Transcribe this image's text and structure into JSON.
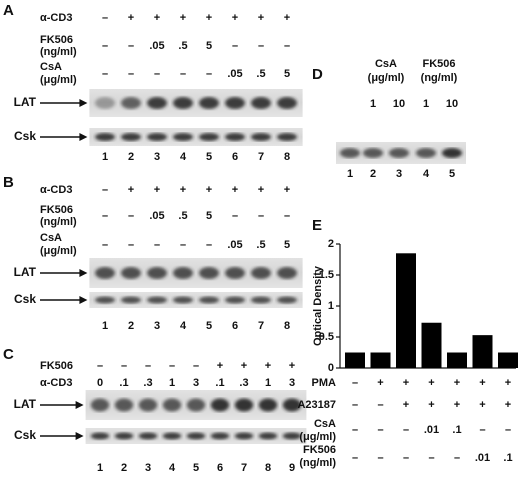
{
  "panels": [
    {
      "label": "A",
      "conditions": [
        {
          "label": [
            "α-CD3"
          ],
          "values": [
            "–",
            "+",
            "+",
            "+",
            "+",
            "+",
            "+",
            "+"
          ]
        },
        {
          "label": [
            "FK506",
            "(ng/ml)"
          ],
          "values": [
            "–",
            "–",
            ".05",
            ".5",
            "5",
            "–",
            "–",
            "–"
          ]
        },
        {
          "label": [
            "CsA",
            "(μg/ml)"
          ],
          "values": [
            "–",
            "–",
            "–",
            "–",
            "–",
            ".05",
            ".5",
            "5"
          ]
        }
      ],
      "blots": [
        "LAT",
        "Csk"
      ],
      "lanes": [
        1,
        2,
        3,
        4,
        5,
        6,
        7,
        8
      ]
    },
    {
      "label": "B",
      "conditions": [
        {
          "label": [
            "α-CD3"
          ],
          "values": [
            "–",
            "+",
            "+",
            "+",
            "+",
            "+",
            "+",
            "+"
          ]
        },
        {
          "label": [
            "FK506",
            "(ng/ml)"
          ],
          "values": [
            "–",
            "–",
            ".05",
            ".5",
            "5",
            "–",
            "–",
            "–"
          ]
        },
        {
          "label": [
            "CsA",
            "(μg/ml)"
          ],
          "values": [
            "–",
            "–",
            "–",
            "–",
            "–",
            ".05",
            ".5",
            "5"
          ]
        }
      ],
      "blots": [
        "LAT",
        "Csk"
      ],
      "lanes": [
        1,
        2,
        3,
        4,
        5,
        6,
        7,
        8
      ]
    },
    {
      "label": "C",
      "conditions": [
        {
          "label": [
            "FK506"
          ],
          "values": [
            "–",
            "–",
            "–",
            "–",
            "–",
            "+",
            "+",
            "+",
            "+"
          ]
        },
        {
          "label": [
            "α-CD3"
          ],
          "values": [
            "0",
            ".1",
            ".3",
            "1",
            "3",
            ".1",
            ".3",
            "1",
            "3"
          ]
        }
      ],
      "blots": [
        "LAT",
        "Csk"
      ],
      "lanes": [
        1,
        2,
        3,
        4,
        5,
        6,
        7,
        8,
        9
      ]
    }
  ],
  "panel_d": {
    "label": "D",
    "groups": [
      {
        "label": [
          "CsA",
          "(μg/ml)"
        ],
        "values": [
          "1",
          "10"
        ]
      },
      {
        "label": [
          "FK506",
          "(ng/ml)"
        ],
        "values": [
          "1",
          "10"
        ]
      }
    ],
    "lanes": [
      1,
      2,
      3,
      4,
      5
    ]
  },
  "panel_e": {
    "label": "E",
    "conditions": [
      {
        "label": [
          "PMA"
        ],
        "values": [
          "–",
          "+",
          "+",
          "+",
          "+",
          "+",
          "+"
        ]
      },
      {
        "label": [
          "A23187"
        ],
        "values": [
          "–",
          "–",
          "+",
          "+",
          "+",
          "+",
          "+"
        ]
      },
      {
        "label": [
          "CsA",
          "(μg/ml)"
        ],
        "values": [
          "–",
          "–",
          "–",
          ".01",
          ".1",
          "–",
          "–"
        ]
      },
      {
        "label": [
          "FK506",
          "(ng/ml)"
        ],
        "values": [
          "–",
          "–",
          "–",
          "–",
          "–",
          ".01",
          ".1"
        ]
      }
    ]
  },
  "chart_data": {
    "type": "bar",
    "y_label": "Optical Density",
    "values": [
      0.25,
      0.25,
      1.85,
      0.73,
      0.25,
      0.53,
      0.25
    ],
    "color": "#000000",
    "ylim": [
      0,
      2
    ],
    "yticks": [
      0,
      0.5,
      1,
      1.5,
      2
    ]
  }
}
